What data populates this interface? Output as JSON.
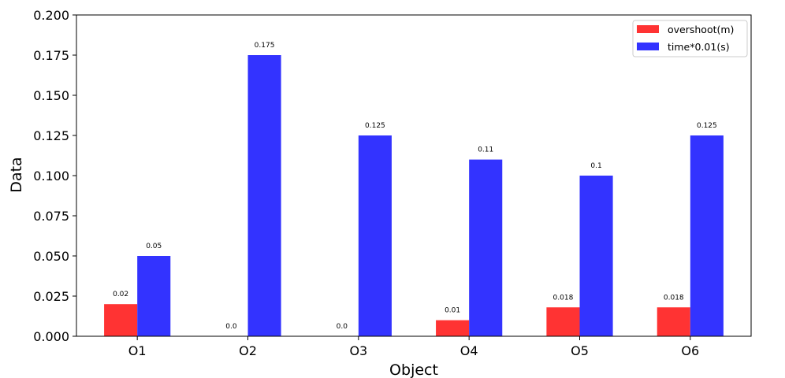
{
  "chart_data": {
    "type": "bar",
    "title": "",
    "xlabel": "Object",
    "ylabel": "Data",
    "categories": [
      "O1",
      "O2",
      "O3",
      "O4",
      "O5",
      "O6"
    ],
    "ylim": [
      0,
      0.2
    ],
    "yticks": [
      "0.000",
      "0.025",
      "0.050",
      "0.075",
      "0.100",
      "0.125",
      "0.150",
      "0.175",
      "0.200"
    ],
    "grid": false,
    "legend_position": "top-right",
    "series": [
      {
        "name": "overshoot(m)",
        "color": "#ff3333",
        "values": [
          0.02,
          0.0,
          0.0,
          0.01,
          0.018,
          0.018
        ],
        "labels": [
          "0.02",
          "0.0",
          "0.0",
          "0.01",
          "0.018",
          "0.018"
        ]
      },
      {
        "name": "time*0.01(s)",
        "color": "#3333ff",
        "values": [
          0.05,
          0.175,
          0.125,
          0.11,
          0.1,
          0.125
        ],
        "labels": [
          "0.05",
          "0.175",
          "0.125",
          "0.11",
          "0.1",
          "0.125"
        ]
      }
    ]
  }
}
